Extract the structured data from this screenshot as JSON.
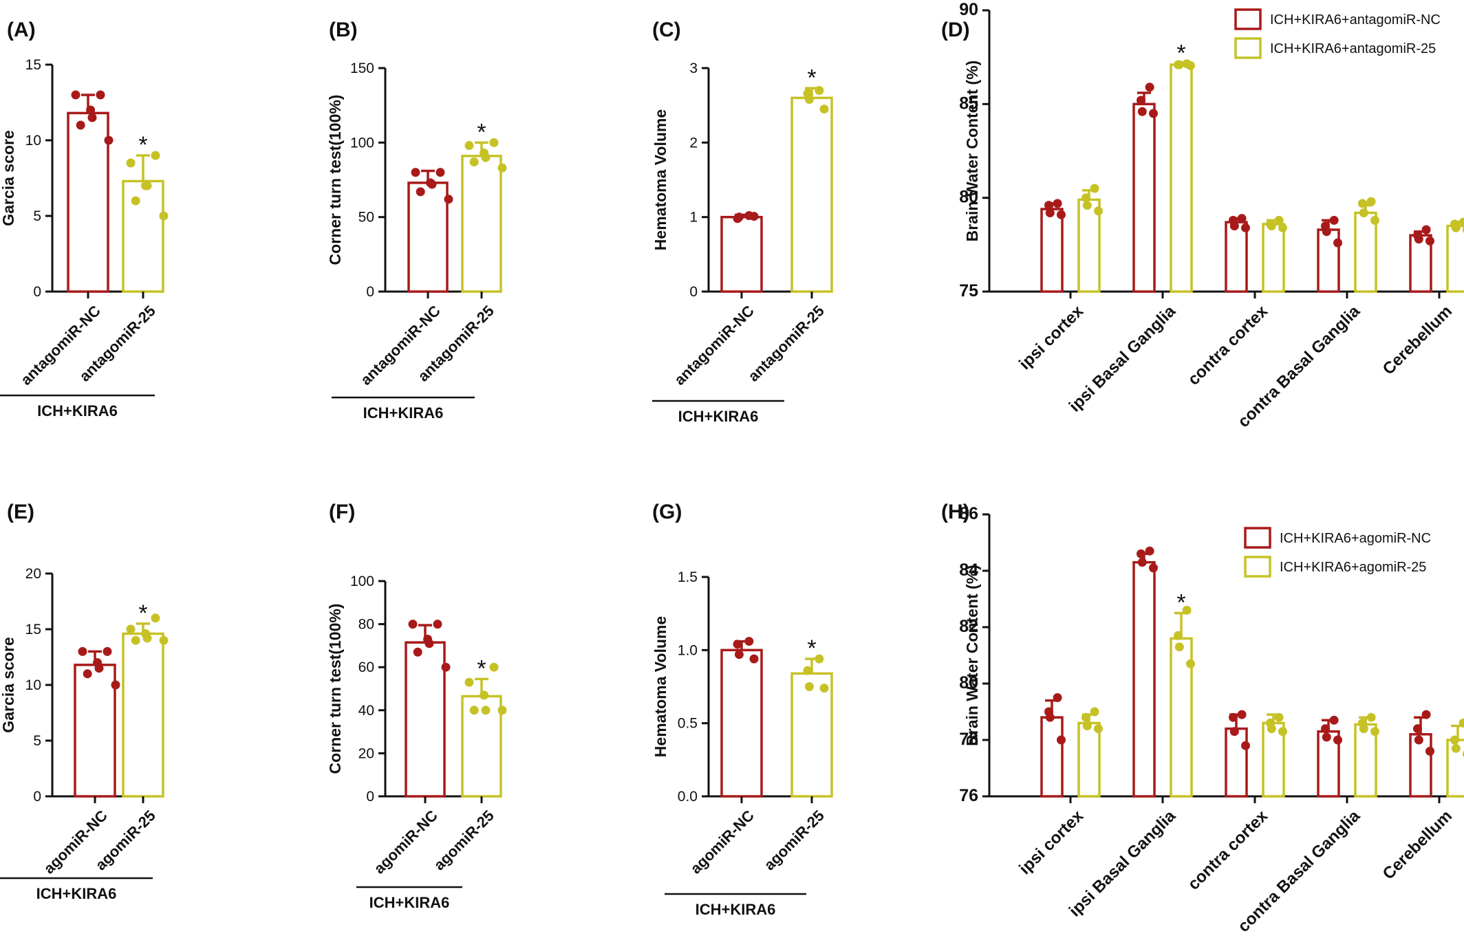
{
  "colors": {
    "nc": "#a81a1a",
    "treat": "#c6c226",
    "axis": "#111111"
  },
  "chart_data": [
    {
      "panel": "(A)",
      "type": "bar",
      "ylabel": "Garcia score",
      "ylim": [
        0,
        15
      ],
      "yticks": [
        0,
        5,
        10,
        15
      ],
      "categories": [
        "antagomiR-NC",
        "antagomiR-25"
      ],
      "group_label": "ICH+KIRA6",
      "series": [
        {
          "values": [
            11.8,
            7.3
          ],
          "errors": [
            1.2,
            1.7
          ],
          "points": [
            [
              13,
              13,
              12,
              11.5,
              11,
              10
            ],
            [
              9,
              8.5,
              7,
              7,
              6,
              5
            ]
          ],
          "significant": [
            false,
            true
          ]
        }
      ]
    },
    {
      "panel": "(B)",
      "type": "bar",
      "ylabel": "Corner turn test(100%)",
      "ylim": [
        0,
        150
      ],
      "yticks": [
        0,
        50,
        100,
        150
      ],
      "categories": [
        "antagomiR-NC",
        "antagomiR-25"
      ],
      "group_label": "ICH+KIRA6",
      "series": [
        {
          "values": [
            73,
            91
          ],
          "errors": [
            8,
            9
          ],
          "points": [
            [
              80,
              80,
              73,
              72,
              67,
              62
            ],
            [
              100,
              98,
              93,
              90,
              87,
              83
            ]
          ],
          "significant": [
            false,
            true
          ]
        }
      ]
    },
    {
      "panel": "(C)",
      "type": "bar",
      "ylabel": "Hematoma Volume",
      "ylim": [
        0,
        3
      ],
      "yticks": [
        0,
        1,
        2,
        3
      ],
      "categories": [
        "antagomiR-NC",
        "antagomiR-25"
      ],
      "group_label": "ICH+KIRA6",
      "series": [
        {
          "values": [
            1.0,
            2.6
          ],
          "errors": [
            0.03,
            0.13
          ],
          "points": [
            [
              1.02,
              0.98,
              1.0,
              1.01
            ],
            [
              2.7,
              2.66,
              2.58,
              2.45
            ]
          ],
          "significant": [
            false,
            true
          ]
        }
      ]
    },
    {
      "panel": "(D)",
      "type": "bar",
      "ylabel": "Brain Water Content (%)",
      "ylim": [
        75,
        90
      ],
      "yticks": [
        75,
        80,
        85,
        90
      ],
      "categories": [
        "ipsi cortex",
        "ipsi Basal Ganglia",
        "contra cortex",
        "contra Basal Ganglia",
        "Cerebellum"
      ],
      "legend": "top-right",
      "series": [
        {
          "name": "ICH+KIRA6+antagomiR-NC",
          "values": [
            79.4,
            85.0,
            78.7,
            78.3,
            78.0
          ],
          "errors": [
            0.3,
            0.6,
            0.2,
            0.5,
            0.2
          ],
          "points": [
            [
              79.7,
              79.6,
              79.2,
              79.1
            ],
            [
              85.9,
              85.2,
              84.6,
              84.5
            ],
            [
              78.9,
              78.8,
              78.5,
              78.4
            ],
            [
              78.8,
              78.5,
              78.2,
              77.6
            ],
            [
              78.3,
              78.0,
              77.8,
              77.7
            ]
          ],
          "significant": [
            false,
            false,
            false,
            false,
            false
          ]
        },
        {
          "name": "ICH+KIRA6+antagomiR-25",
          "values": [
            79.9,
            87.1,
            78.6,
            79.2,
            78.5
          ],
          "errors": [
            0.5,
            0.05,
            0.2,
            0.4,
            0.2
          ],
          "points": [
            [
              80.5,
              80.0,
              79.6,
              79.3
            ],
            [
              87.15,
              87.1,
              87.1,
              87.05
            ],
            [
              78.8,
              78.6,
              78.5,
              78.4
            ],
            [
              79.8,
              79.7,
              79.2,
              78.8
            ],
            [
              78.7,
              78.6,
              78.4,
              78.3
            ]
          ],
          "significant": [
            false,
            true,
            false,
            false,
            false
          ]
        }
      ]
    },
    {
      "panel": "(E)",
      "type": "bar",
      "ylabel": "Garcia score",
      "ylim": [
        0,
        20
      ],
      "yticks": [
        0,
        5,
        10,
        15,
        20
      ],
      "categories": [
        "agomiR-NC",
        "agomiR-25"
      ],
      "group_label": "ICH+KIRA6",
      "series": [
        {
          "values": [
            11.8,
            14.6
          ],
          "errors": [
            1.2,
            0.9
          ],
          "points": [
            [
              13,
              13,
              12,
              11.5,
              11,
              10
            ],
            [
              16,
              15,
              14.6,
              14.2,
              14,
              14
            ]
          ],
          "significant": [
            false,
            true
          ]
        }
      ]
    },
    {
      "panel": "(F)",
      "type": "bar",
      "ylabel": "Corner turn test(100%)",
      "ylim": [
        0,
        100
      ],
      "yticks": [
        0,
        20,
        40,
        60,
        80,
        100
      ],
      "categories": [
        "agomiR-NC",
        "agomiR-25"
      ],
      "group_label": "ICH+KIRA6",
      "series": [
        {
          "values": [
            71.5,
            46.5
          ],
          "errors": [
            8,
            8
          ],
          "points": [
            [
              80,
              80,
              73,
              71,
              67,
              60
            ],
            [
              60,
              53,
              47,
              40,
              40,
              40
            ]
          ],
          "significant": [
            false,
            true
          ]
        }
      ]
    },
    {
      "panel": "(G)",
      "type": "bar",
      "ylabel": "Hematoma Volume",
      "ylim": [
        0,
        1.5
      ],
      "yticks": [
        "0.0",
        "0.5",
        "1.0",
        "1.5"
      ],
      "categories": [
        "agomiR-NC",
        "agomiR-25"
      ],
      "group_label": "ICH+KIRA6",
      "series": [
        {
          "values": [
            1.0,
            0.84
          ],
          "errors": [
            0.06,
            0.1
          ],
          "points": [
            [
              1.06,
              1.04,
              0.97,
              0.94
            ],
            [
              0.94,
              0.86,
              0.75,
              0.74
            ]
          ],
          "significant": [
            false,
            true
          ]
        }
      ]
    },
    {
      "panel": "(H)",
      "type": "bar",
      "ylabel": "Brain Water Content (%)",
      "ylim": [
        76,
        86
      ],
      "yticks": [
        76,
        78,
        80,
        82,
        84,
        86
      ],
      "categories": [
        "ipsi cortex",
        "ipsi Basal Ganglia",
        "contra cortex",
        "contra Basal Ganglia",
        "Cerebellum"
      ],
      "legend": "top-right",
      "series": [
        {
          "name": "ICH+KIRA6+agomiR-NC",
          "values": [
            78.8,
            84.3,
            78.4,
            78.3,
            78.2
          ],
          "errors": [
            0.6,
            0.3,
            0.5,
            0.4,
            0.6
          ],
          "points": [
            [
              79.5,
              79.0,
              78.8,
              78.0
            ],
            [
              84.7,
              84.6,
              84.3,
              84.1
            ],
            [
              78.9,
              78.8,
              78.3,
              77.8
            ],
            [
              78.7,
              78.4,
              78.1,
              78.0
            ],
            [
              78.9,
              78.4,
              78.0,
              77.6
            ]
          ],
          "significant": [
            false,
            false,
            false,
            false,
            false
          ]
        },
        {
          "name": "ICH+KIRA6+agomiR-25",
          "values": [
            78.6,
            81.6,
            78.6,
            78.55,
            78.0
          ],
          "errors": [
            0.3,
            0.9,
            0.3,
            0.25,
            0.5
          ],
          "points": [
            [
              79.0,
              78.8,
              78.5,
              78.4
            ],
            [
              82.6,
              81.7,
              81.3,
              80.7
            ],
            [
              78.8,
              78.6,
              78.4,
              78.3
            ],
            [
              78.8,
              78.6,
              78.4,
              78.3
            ],
            [
              78.6,
              78.0,
              77.7,
              77.5
            ]
          ],
          "significant": [
            false,
            true,
            false,
            false,
            false
          ]
        }
      ]
    }
  ]
}
